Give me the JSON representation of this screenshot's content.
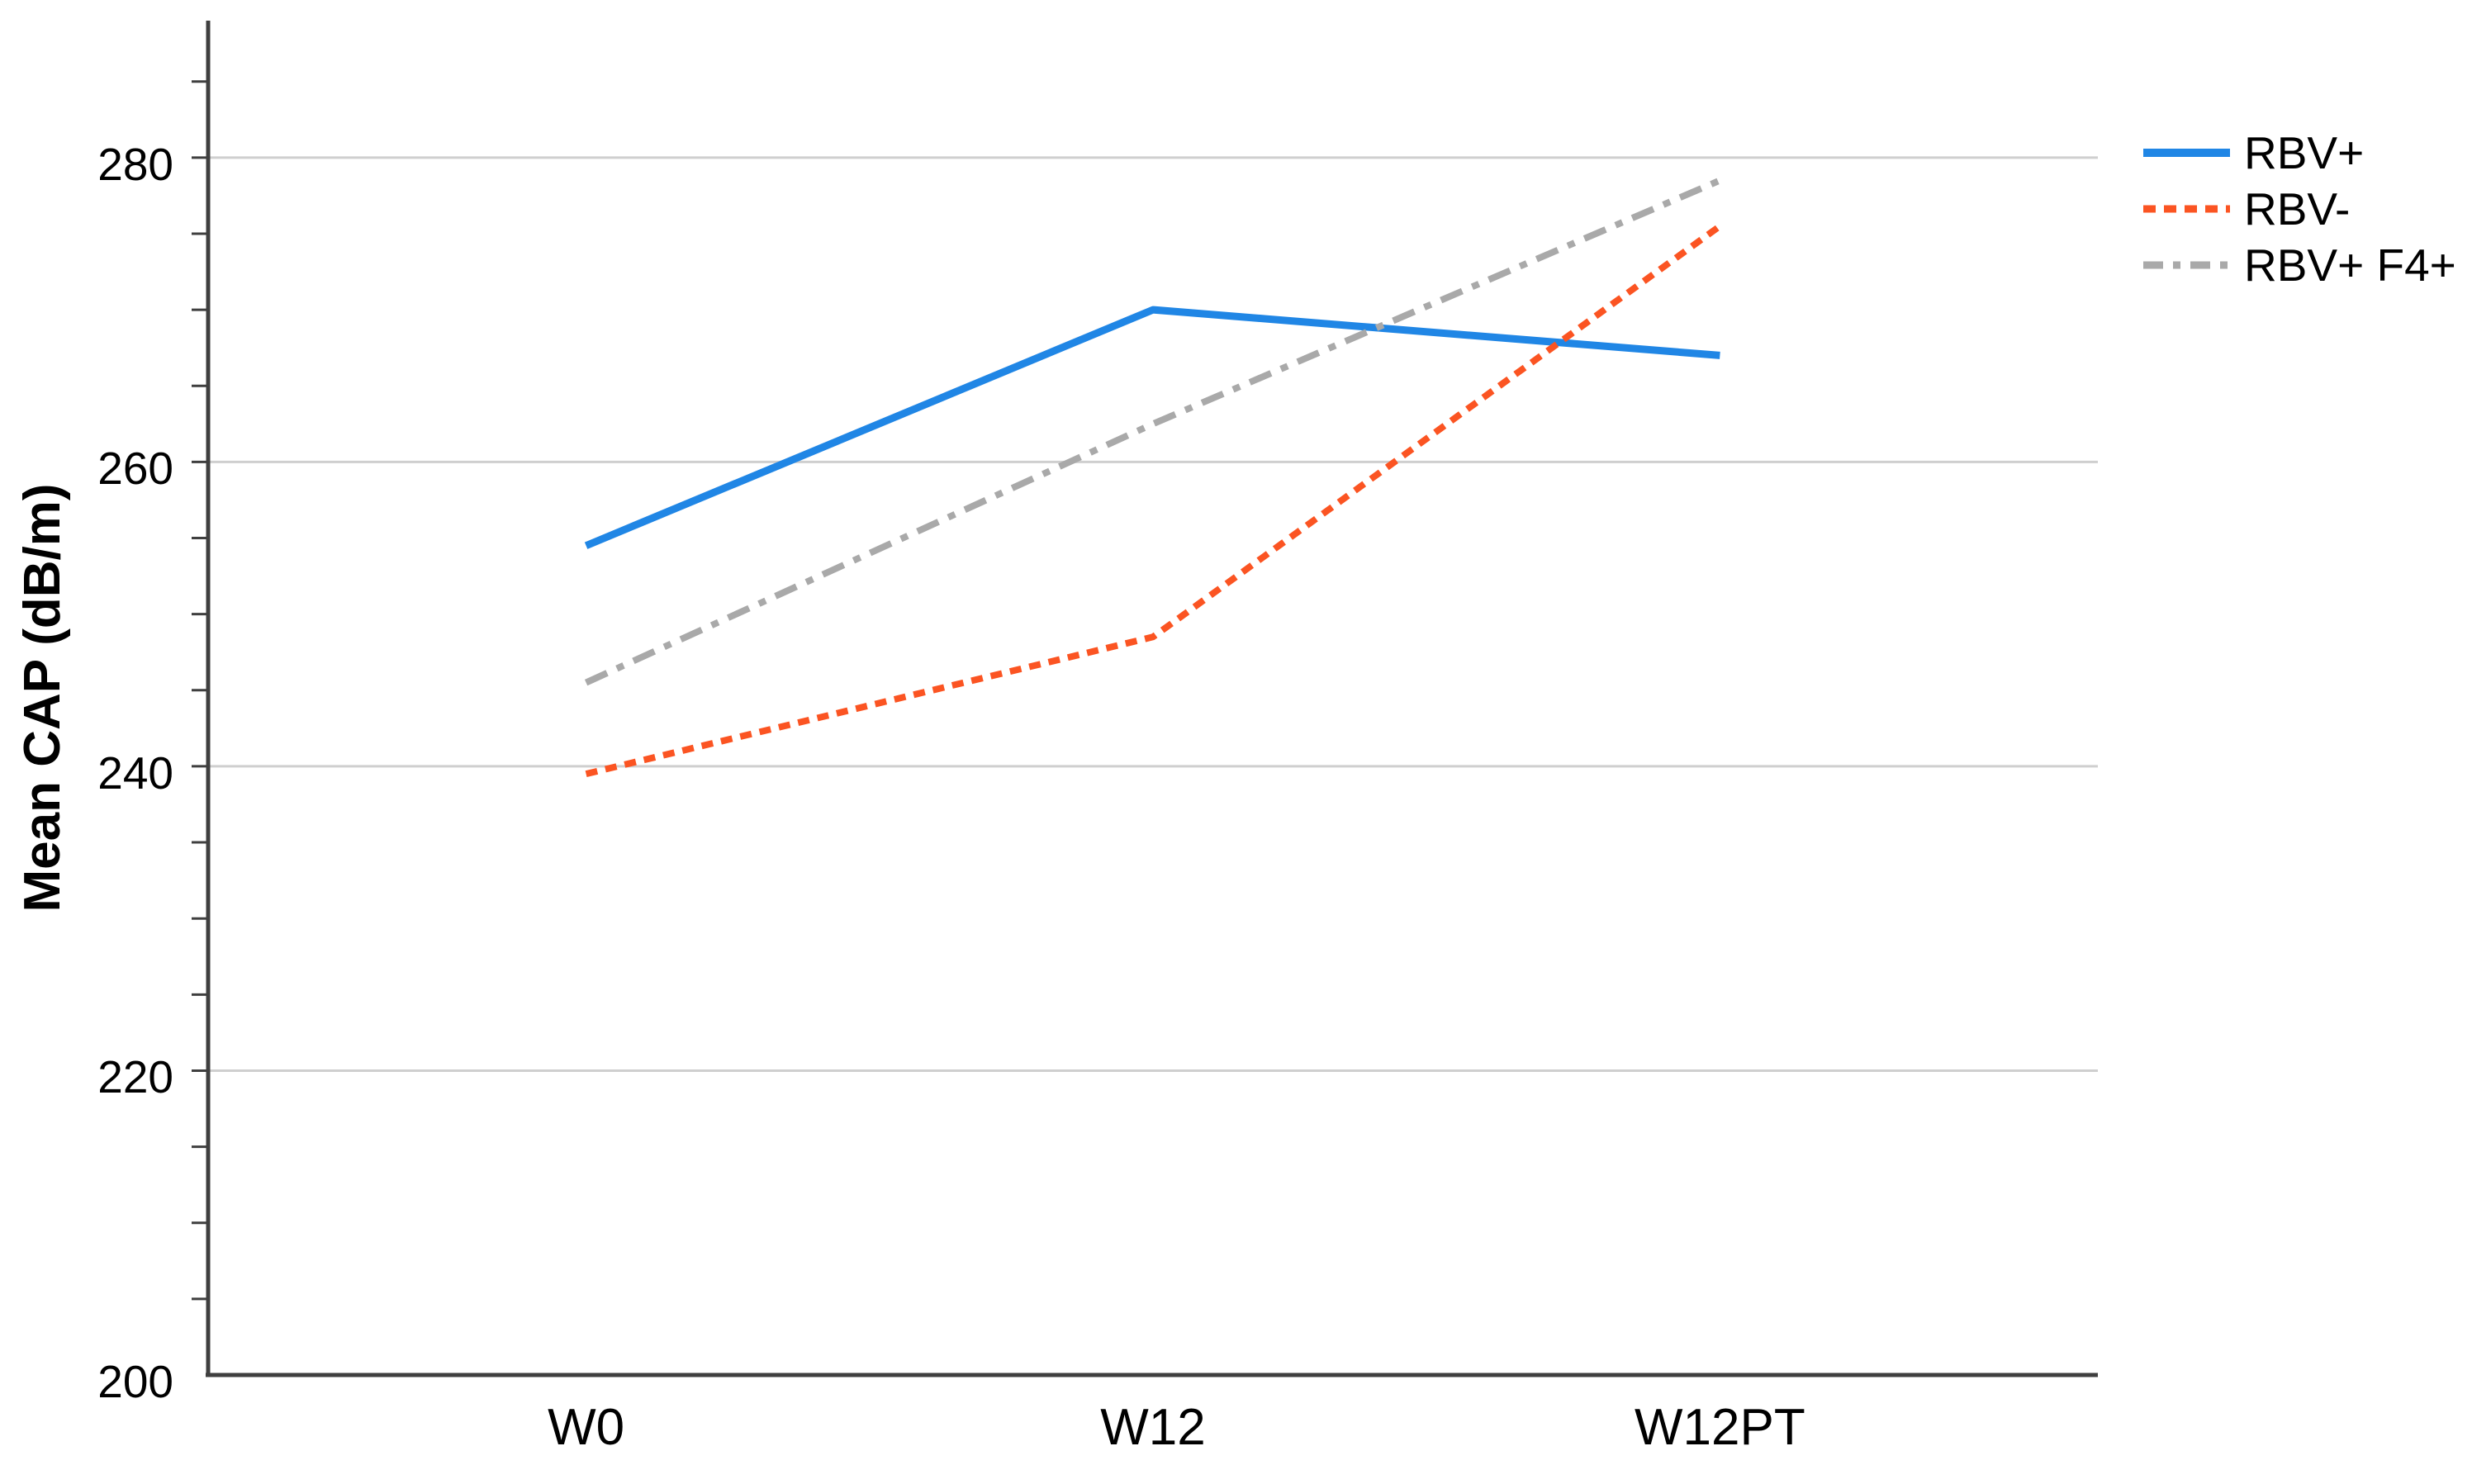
{
  "chart_data": {
    "type": "line",
    "title": "",
    "xlabel": "",
    "ylabel": "Mean CAP (dB/m)",
    "categories": [
      "W0",
      "W12",
      "W12PT"
    ],
    "series": [
      {
        "name": "RBV+",
        "values": [
          254.5,
          270.0,
          267.0
        ],
        "color": "#2086e5",
        "line_style": "solid"
      },
      {
        "name": "RBV-",
        "values": [
          239.5,
          248.5,
          275.5
        ],
        "color": "#fb5422",
        "line_style": "dashed"
      },
      {
        "name": "RBV+ F4+",
        "values": [
          245.5,
          262.5,
          278.5
        ],
        "color": "#a9a9a9",
        "line_style": "dashdot"
      }
    ],
    "ylim": [
      200,
      289
    ],
    "yticks": [
      200,
      220,
      240,
      260,
      280
    ],
    "minor_tick_step": 5,
    "grid": true,
    "legend_position": "right",
    "axis_color": "#3f3f3f",
    "grid_color": "#cfcfcf",
    "text_color": "#000000"
  }
}
